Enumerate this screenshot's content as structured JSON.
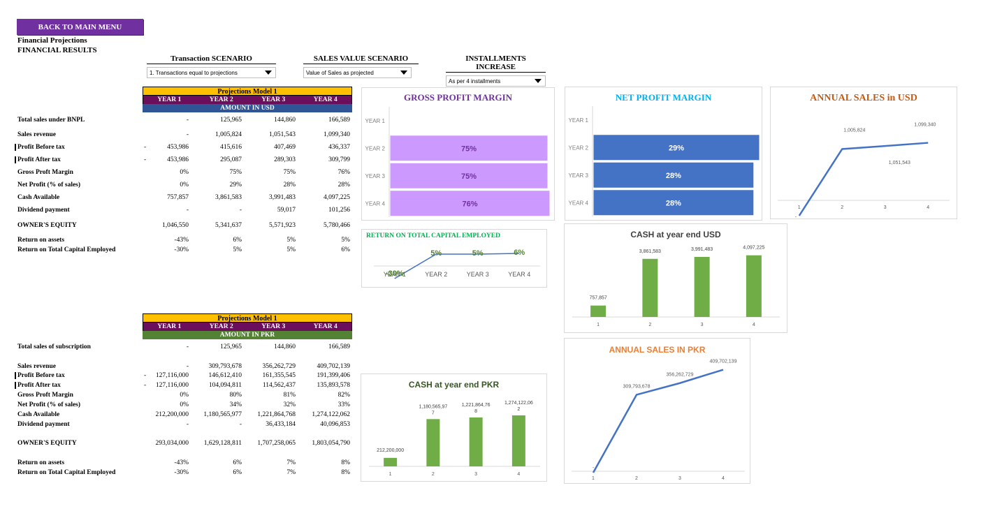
{
  "nav": {
    "back_label": "BACK TO MAIN MENU"
  },
  "header": {
    "line1": "Financial Projections",
    "line2": "FINANCIAL RESULTS"
  },
  "selectors": [
    {
      "label": "Transaction SCENARIO",
      "value": "1. Transactions equal to projections"
    },
    {
      "label": "SALES VALUE SCENARIO",
      "value": "Value of Sales as projected"
    },
    {
      "label": "INSTALLMENTS INCREASE",
      "value": "As per 4 installments"
    }
  ],
  "usd_table": {
    "model": "Projections Model 1",
    "years": [
      "YEAR 1",
      "YEAR 2",
      "YEAR 3",
      "YEAR 4"
    ],
    "amount_label": "AMOUNT IN USD",
    "amount_color": "#2f5597",
    "rows": [
      {
        "label": "Total sales under BNPL",
        "neg": "",
        "values": [
          "-",
          "125,965",
          "144,860",
          "166,589"
        ]
      },
      {
        "label": "Sales revenue",
        "neg": "",
        "values": [
          "-",
          "1,005,824",
          "1,051,543",
          "1,099,340"
        ]
      },
      {
        "label": "Profit Before tax",
        "neg": "-",
        "values": [
          "453,986",
          "415,616",
          "407,469",
          "436,337"
        ]
      },
      {
        "label": "Profit After tax",
        "neg": "-",
        "values": [
          "453,986",
          "295,087",
          "289,303",
          "309,799"
        ]
      },
      {
        "label": "Gross Proft Margin",
        "neg": "",
        "values": [
          "0%",
          "75%",
          "75%",
          "76%"
        ]
      },
      {
        "label": "Net Profit (% of sales)",
        "neg": "",
        "values": [
          "0%",
          "29%",
          "28%",
          "28%"
        ]
      },
      {
        "label": "Cash Available",
        "neg": "",
        "values": [
          "757,857",
          "3,861,583",
          "3,991,483",
          "4,097,225"
        ]
      },
      {
        "label": "Dividend payment",
        "neg": "",
        "values": [
          "-",
          "-",
          "59,017",
          "101,256"
        ]
      },
      {
        "label": "OWNER'S EQUITY",
        "neg": "",
        "values": [
          "1,046,550",
          "5,341,637",
          "5,571,923",
          "5,780,466"
        ]
      },
      {
        "label": "Return on assets",
        "neg": "",
        "values": [
          "-43%",
          "6%",
          "5%",
          "5%"
        ]
      },
      {
        "label": "Return on Total Capital Employed",
        "neg": "",
        "values": [
          "-30%",
          "5%",
          "5%",
          "6%"
        ]
      }
    ]
  },
  "pkr_table": {
    "model": "Projections Model 1",
    "years": [
      "YEAR 1",
      "YEAR 2",
      "YEAR 3",
      "YEAR 4"
    ],
    "amount_label": "AMOUNT IN PKR",
    "amount_color": "#548235",
    "rows": [
      {
        "label": "Total sales of subscription",
        "neg": "",
        "values": [
          "-",
          "125,965",
          "144,860",
          "166,589"
        ]
      },
      {
        "label": "Sales revenue",
        "neg": "",
        "values": [
          "-",
          "309,793,678",
          "356,262,729",
          "409,702,139"
        ]
      },
      {
        "label": "Profit Before tax",
        "neg": "-",
        "values": [
          "127,116,000",
          "146,612,410",
          "161,355,545",
          "191,399,406"
        ]
      },
      {
        "label": "Profit After tax",
        "neg": "-",
        "values": [
          "127,116,000",
          "104,094,811",
          "114,562,437",
          "135,893,578"
        ]
      },
      {
        "label": "Gross Proft Margin",
        "neg": "",
        "values": [
          "0%",
          "80%",
          "81%",
          "82%"
        ]
      },
      {
        "label": "Net Profit (% of sales)",
        "neg": "",
        "values": [
          "0%",
          "34%",
          "32%",
          "33%"
        ]
      },
      {
        "label": "Cash Available",
        "neg": "",
        "values": [
          "212,200,000",
          "1,180,565,977",
          "1,221,864,768",
          "1,274,122,062"
        ]
      },
      {
        "label": "Dividend payment",
        "neg": "",
        "values": [
          "-",
          "-",
          "36,433,184",
          "40,096,853"
        ]
      },
      {
        "label": "OWNER'S EQUITY",
        "neg": "",
        "values": [
          "293,034,000",
          "1,629,128,811",
          "1,707,258,065",
          "1,803,054,790"
        ]
      },
      {
        "label": "Return on assets",
        "neg": "",
        "values": [
          "-43%",
          "6%",
          "7%",
          "8%"
        ]
      },
      {
        "label": "Return on Total Capital Employed",
        "neg": "",
        "values": [
          "-30%",
          "6%",
          "7%",
          "8%"
        ]
      }
    ]
  },
  "chart_data": [
    {
      "id": "gpm",
      "type": "bar",
      "orientation": "horizontal",
      "title": "GROSS PROFIT MARGIN",
      "title_color": "#7030a0",
      "categories": [
        "YEAR 1",
        "YEAR 2",
        "YEAR 3",
        "YEAR 4"
      ],
      "values": [
        0,
        75,
        75,
        76
      ],
      "labels": [
        "",
        "75%",
        "75%",
        "76%"
      ],
      "color": "#cc99ff",
      "xlim": [
        0,
        76
      ]
    },
    {
      "id": "npm",
      "type": "bar",
      "orientation": "horizontal",
      "title": "NET PROFIT MARGIN",
      "title_color": "#00b0f0",
      "categories": [
        "YEAR 1",
        "YEAR 2",
        "YEAR 3",
        "YEAR 4"
      ],
      "values": [
        0,
        29,
        28,
        28
      ],
      "labels": [
        "",
        "29%",
        "28%",
        "28%"
      ],
      "color": "#4472c4",
      "xlim": [
        0,
        29
      ]
    },
    {
      "id": "sales_usd",
      "type": "line",
      "title": "ANNUAL SALES in USD",
      "title_color": "#c55a11",
      "categories": [
        "1",
        "2",
        "3",
        "4"
      ],
      "values": [
        0,
        1005824,
        1051543,
        1099340
      ],
      "labels": [
        "-",
        "1,005,824",
        "1,051,543",
        "1,099,340"
      ],
      "color": "#4472c4",
      "ylim": [
        0,
        1200000
      ]
    },
    {
      "id": "rtce",
      "type": "line",
      "title": "RETURN ON TOTAL CAPITAL EMPLOYED",
      "title_color": "#00b050",
      "categories": [
        "YEAR 1",
        "YEAR 2",
        "YEAR 3",
        "YEAR 4"
      ],
      "values": [
        -30,
        5,
        5,
        6
      ],
      "labels": [
        "-30%",
        "5%",
        "5%",
        "6%"
      ],
      "color": "#4472c4",
      "label_color": "#548235",
      "ylim": [
        -35,
        10
      ]
    },
    {
      "id": "cash_usd",
      "type": "bar",
      "title": "CASH at year end USD",
      "title_color": "#404040",
      "categories": [
        "1",
        "2",
        "3",
        "4"
      ],
      "values": [
        757857,
        3861583,
        3991483,
        4097225
      ],
      "labels": [
        "757,857",
        "3,861,583",
        "3,991,483",
        "4,097,225"
      ],
      "color": "#70ad47",
      "ylim": [
        0,
        4500000
      ]
    },
    {
      "id": "sales_pkr",
      "type": "line",
      "title": "ANNUAL SALES IN PKR",
      "title_color": "#ed7d31",
      "categories": [
        "1",
        "2",
        "3",
        "4"
      ],
      "values": [
        0,
        309793678,
        356262729,
        409702139
      ],
      "labels": [
        "-",
        "309,793,678",
        "356,262,729",
        "409,702,139"
      ],
      "color": "#4472c4",
      "ylim": [
        0,
        450000000
      ]
    },
    {
      "id": "cash_pkr",
      "type": "bar",
      "title": "CASH at year end PKR",
      "title_color": "#375623",
      "categories": [
        "1",
        "2",
        "3",
        "4"
      ],
      "values": [
        212200000,
        1180565977,
        1221864768,
        1274122062
      ],
      "labels": [
        "212,200,000",
        "1,180,565,977",
        "1,221,864,768",
        "1,274,122,062"
      ],
      "color": "#70ad47",
      "ylim": [
        0,
        1500000000
      ]
    }
  ]
}
